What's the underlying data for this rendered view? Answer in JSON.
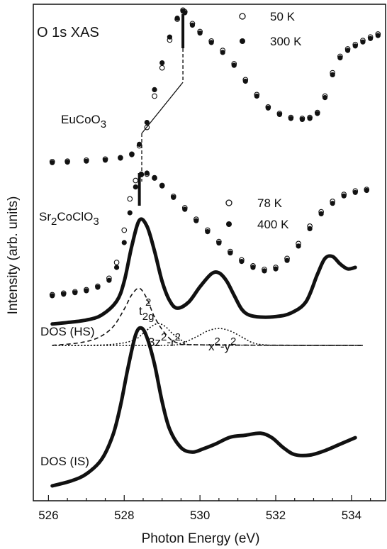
{
  "chart_data": {
    "type": "scatter",
    "title": "O 1s XAS",
    "xlabel": "Photon Energy (eV)",
    "ylabel": "Intensity (arb. units)",
    "xlim": [
      525.6,
      534.9
    ],
    "ylim": [
      0,
      1
    ],
    "x_ticks": [
      526,
      528,
      530,
      532,
      534
    ],
    "y_ticks_labeled": false,
    "grid": false,
    "legends": [
      {
        "entries": [
          {
            "label": "50 K",
            "marker": "open-circle"
          },
          {
            "label": "300 K",
            "marker": "filled-circle"
          }
        ],
        "placement": "top-right"
      },
      {
        "entries": [
          {
            "label": "78 K",
            "marker": "open-circle"
          },
          {
            "label": "400 K",
            "marker": "filled-circle"
          }
        ],
        "placement": "center-right"
      }
    ],
    "sample_labels": {
      "euco": [
        "EuCoO",
        "3"
      ],
      "srco": [
        "Sr",
        "2",
        "CoClO",
        "3"
      ]
    },
    "curve_labels": {
      "dos_hs": "DOS (HS)",
      "dos_is": "DOS (IS)"
    },
    "peak_labels": {
      "t2g": [
        "t",
        "2g",
        "2"
      ],
      "z2": [
        "3z",
        "2",
        "-r",
        "2"
      ],
      "x2y2": [
        "x",
        "2",
        "-y",
        "2"
      ]
    },
    "series": [
      {
        "name": "50 K",
        "sample": "EuCoO3",
        "marker": "open-circle",
        "x": [
          526.1,
          526.5,
          527.0,
          527.5,
          527.9,
          528.2,
          528.4,
          528.6,
          528.8,
          529.0,
          529.2,
          529.4,
          529.55,
          529.6,
          529.8,
          530.0,
          530.3,
          530.6,
          530.9,
          531.2,
          531.5,
          531.8,
          532.1,
          532.4,
          532.7,
          532.9,
          533.1,
          533.3,
          533.5,
          533.7,
          533.9,
          534.1,
          534.3,
          534.5,
          534.7
        ],
        "y": [
          0.683,
          0.684,
          0.686,
          0.688,
          0.691,
          0.698,
          0.715,
          0.752,
          0.815,
          0.872,
          0.928,
          0.97,
          0.988,
          0.985,
          0.961,
          0.945,
          0.926,
          0.907,
          0.88,
          0.848,
          0.818,
          0.793,
          0.78,
          0.772,
          0.77,
          0.772,
          0.782,
          0.815,
          0.862,
          0.895,
          0.91,
          0.919,
          0.927,
          0.934,
          0.94
        ]
      },
      {
        "name": "300 K",
        "sample": "EuCoO3",
        "marker": "filled-circle",
        "x": [
          526.1,
          526.5,
          527.0,
          527.5,
          527.9,
          528.2,
          528.4,
          528.6,
          528.8,
          529.0,
          529.2,
          529.4,
          529.55,
          529.6,
          529.8,
          530.0,
          530.3,
          530.6,
          530.9,
          531.2,
          531.5,
          531.8,
          532.1,
          532.4,
          532.7,
          532.9,
          533.1,
          533.3,
          533.5,
          533.7,
          533.9,
          534.1,
          534.3,
          534.5,
          534.7
        ],
        "y": [
          0.681,
          0.682,
          0.684,
          0.686,
          0.69,
          0.697,
          0.718,
          0.762,
          0.828,
          0.882,
          0.934,
          0.972,
          0.986,
          0.983,
          0.958,
          0.942,
          0.923,
          0.903,
          0.877,
          0.845,
          0.815,
          0.791,
          0.778,
          0.77,
          0.768,
          0.77,
          0.78,
          0.812,
          0.858,
          0.892,
          0.907,
          0.916,
          0.924,
          0.931,
          0.937
        ]
      },
      {
        "name": "78 K",
        "sample": "Sr2CoClO3",
        "marker": "open-circle",
        "x": [
          526.1,
          526.4,
          526.7,
          527.0,
          527.3,
          527.6,
          527.8,
          528.0,
          528.15,
          528.3,
          528.45,
          528.6,
          528.8,
          529.0,
          529.3,
          529.6,
          529.9,
          530.2,
          530.5,
          530.8,
          531.1,
          531.4,
          531.7,
          532.0,
          532.3,
          532.6,
          532.9,
          533.2,
          533.5,
          533.8,
          534.1,
          534.4
        ],
        "y": [
          0.415,
          0.418,
          0.421,
          0.425,
          0.432,
          0.448,
          0.48,
          0.545,
          0.608,
          0.645,
          0.657,
          0.658,
          0.65,
          0.635,
          0.613,
          0.59,
          0.567,
          0.545,
          0.522,
          0.502,
          0.485,
          0.473,
          0.466,
          0.47,
          0.488,
          0.518,
          0.553,
          0.582,
          0.603,
          0.617,
          0.624,
          0.627
        ]
      },
      {
        "name": "400 K",
        "sample": "Sr2CoClO3",
        "marker": "filled-circle",
        "x": [
          526.1,
          526.4,
          526.7,
          527.0,
          527.3,
          527.6,
          527.8,
          528.0,
          528.15,
          528.3,
          528.45,
          528.6,
          528.8,
          529.0,
          529.3,
          529.6,
          529.9,
          530.2,
          530.5,
          530.8,
          531.1,
          531.4,
          531.7,
          532.0,
          532.3,
          532.6,
          532.9,
          533.2,
          533.5,
          533.8,
          534.1,
          534.4
        ],
        "y": [
          0.413,
          0.416,
          0.419,
          0.423,
          0.43,
          0.444,
          0.47,
          0.52,
          0.58,
          0.632,
          0.658,
          0.66,
          0.651,
          0.634,
          0.611,
          0.587,
          0.564,
          0.542,
          0.519,
          0.499,
          0.482,
          0.47,
          0.463,
          0.467,
          0.484,
          0.513,
          0.548,
          0.578,
          0.599,
          0.614,
          0.621,
          0.625
        ]
      },
      {
        "name": "DOS (HS)",
        "style": "thick-line",
        "x": [
          526.1,
          526.5,
          527.0,
          527.4,
          527.8,
          528.0,
          528.2,
          528.4,
          528.6,
          528.8,
          529.0,
          529.2,
          529.4,
          529.7,
          530.0,
          530.3,
          530.5,
          530.7,
          530.9,
          531.1,
          531.3,
          531.6,
          532.0,
          532.4,
          532.8,
          533.1,
          533.3,
          533.5,
          533.7,
          533.9,
          534.1
        ],
        "y": [
          0.356,
          0.359,
          0.364,
          0.374,
          0.402,
          0.442,
          0.513,
          0.565,
          0.553,
          0.503,
          0.442,
          0.403,
          0.388,
          0.4,
          0.431,
          0.457,
          0.459,
          0.443,
          0.414,
          0.386,
          0.374,
          0.37,
          0.371,
          0.378,
          0.401,
          0.456,
          0.488,
          0.492,
          0.477,
          0.467,
          0.47
        ]
      },
      {
        "name": "t2g",
        "style": "dashed",
        "x": [
          526.1,
          526.8,
          527.3,
          527.7,
          528.0,
          528.2,
          528.4,
          528.6,
          528.8,
          529.1,
          529.4,
          530.0,
          534.3
        ],
        "y": [
          0.313,
          0.318,
          0.328,
          0.35,
          0.386,
          0.415,
          0.428,
          0.407,
          0.37,
          0.335,
          0.318,
          0.314,
          0.313
        ]
      },
      {
        "name": "3z2-r2",
        "style": "dotted",
        "x": [
          526.1,
          527.5,
          528.2,
          528.5,
          528.7,
          528.9,
          529.1,
          529.3,
          529.6,
          530.0,
          534.3
        ],
        "y": [
          0.313,
          0.314,
          0.322,
          0.337,
          0.35,
          0.357,
          0.35,
          0.335,
          0.32,
          0.314,
          0.313
        ]
      },
      {
        "name": "x2-y2",
        "style": "dotted",
        "x": [
          526.1,
          529.0,
          529.5,
          529.9,
          530.2,
          530.5,
          530.8,
          531.1,
          531.4,
          531.7,
          532.2,
          534.3
        ],
        "y": [
          0.313,
          0.313,
          0.317,
          0.33,
          0.342,
          0.347,
          0.342,
          0.33,
          0.318,
          0.314,
          0.313,
          0.313
        ]
      },
      {
        "name": "DOS (IS)",
        "style": "thick-line",
        "x": [
          526.1,
          526.6,
          527.0,
          527.4,
          527.7,
          527.9,
          528.1,
          528.3,
          528.45,
          528.6,
          528.8,
          529.0,
          529.2,
          529.5,
          529.8,
          530.1,
          530.4,
          530.8,
          531.2,
          531.6,
          531.9,
          532.2,
          532.5,
          532.9,
          533.3,
          533.7,
          534.1
        ],
        "y": [
          0.03,
          0.04,
          0.054,
          0.083,
          0.132,
          0.191,
          0.268,
          0.334,
          0.348,
          0.329,
          0.275,
          0.2,
          0.144,
          0.107,
          0.098,
          0.105,
          0.114,
          0.128,
          0.132,
          0.136,
          0.127,
          0.107,
          0.093,
          0.092,
          0.101,
          0.114,
          0.127
        ]
      }
    ],
    "markers": {
      "euco_peak_x": 529.55,
      "srco_peak_x": 528.4
    }
  }
}
